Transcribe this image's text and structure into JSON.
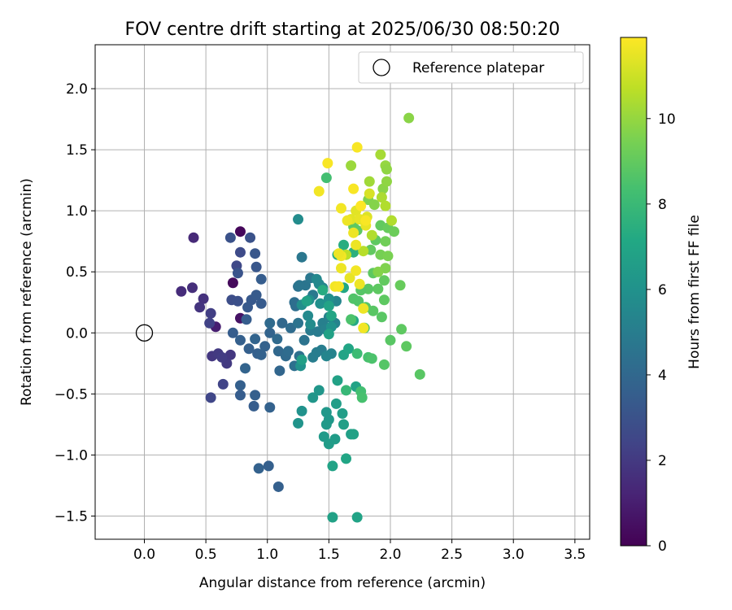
{
  "chart_data": {
    "type": "scatter",
    "title": "FOV centre drift starting at 2025/06/30 08:50:20",
    "xlabel": "Angular distance from reference (arcmin)",
    "ylabel": "Rotation from reference (arcmin)",
    "xlim": [
      -0.4,
      3.62
    ],
    "ylim": [
      -1.69,
      2.36
    ],
    "x_ticks": [
      "0.0",
      "0.5",
      "1.0",
      "1.5",
      "2.0",
      "2.5",
      "3.0",
      "3.5"
    ],
    "y_ticks": [
      "-1.5",
      "-1.0",
      "-0.5",
      "0.0",
      "0.5",
      "1.0",
      "1.5",
      "2.0"
    ],
    "grid": true,
    "legend": {
      "placement": "top-right",
      "entries": [
        "Reference platepar"
      ]
    },
    "reference_point": {
      "x": 0.0,
      "y": 0.0,
      "label": "Reference platepar"
    },
    "colorbar": {
      "label": "Hours from first FF file",
      "min": 0,
      "max": 11.9,
      "ticks": [
        "0",
        "2",
        "4",
        "6",
        "8",
        "10"
      ],
      "colormap": "viridis"
    },
    "series": [
      {
        "points": [
          [
            0.78,
            0.83,
            0.2
          ],
          [
            0.72,
            0.41,
            0.3
          ],
          [
            0.78,
            0.12,
            0.6
          ],
          [
            0.58,
            0.05,
            1.0
          ],
          [
            0.4,
            0.78,
            1.4
          ],
          [
            0.3,
            0.34,
            1.5
          ],
          [
            0.39,
            0.37,
            1.6
          ],
          [
            0.48,
            0.28,
            1.7
          ],
          [
            0.45,
            0.21,
            1.8
          ],
          [
            0.55,
            -0.19,
            1.9
          ],
          [
            0.7,
            -0.18,
            1.9
          ],
          [
            0.67,
            -0.25,
            2.0
          ],
          [
            0.6,
            -0.17,
            2.0
          ],
          [
            0.63,
            -0.2,
            2.1
          ],
          [
            0.54,
            0.16,
            2.2
          ],
          [
            0.53,
            0.08,
            2.3
          ],
          [
            0.64,
            -0.42,
            2.4
          ],
          [
            0.54,
            -0.53,
            2.5
          ],
          [
            0.75,
            0.55,
            2.6
          ],
          [
            0.78,
            0.66,
            2.7
          ],
          [
            0.71,
            0.27,
            2.8
          ],
          [
            0.76,
            0.26,
            2.9
          ],
          [
            0.7,
            0.78,
            3.0
          ],
          [
            0.86,
            0.78,
            3.0
          ],
          [
            0.76,
            0.49,
            3.1
          ],
          [
            0.9,
            0.65,
            3.2
          ],
          [
            0.91,
            0.54,
            3.2
          ],
          [
            0.87,
            0.27,
            3.3
          ],
          [
            0.84,
            0.21,
            3.3
          ],
          [
            0.95,
            0.24,
            3.4
          ],
          [
            0.91,
            0.31,
            3.4
          ],
          [
            0.95,
            0.44,
            3.5
          ],
          [
            0.83,
            0.11,
            3.5
          ],
          [
            0.72,
            0.0,
            3.5
          ],
          [
            0.78,
            -0.06,
            3.6
          ],
          [
            0.85,
            -0.13,
            3.6
          ],
          [
            0.92,
            -0.17,
            3.6
          ],
          [
            0.98,
            -0.11,
            3.7
          ],
          [
            0.95,
            -0.18,
            3.7
          ],
          [
            1.02,
            0.0,
            3.8
          ],
          [
            0.9,
            -0.05,
            3.8
          ],
          [
            0.82,
            -0.29,
            3.8
          ],
          [
            0.78,
            -0.43,
            3.6
          ],
          [
            0.78,
            -0.51,
            3.5
          ],
          [
            0.89,
            -0.6,
            3.5
          ],
          [
            0.9,
            -0.51,
            3.6
          ],
          [
            1.02,
            -0.61,
            3.7
          ],
          [
            1.01,
            -1.09,
            3.6
          ],
          [
            0.93,
            -1.11,
            3.7
          ],
          [
            1.09,
            -1.26,
            3.6
          ],
          [
            1.1,
            -0.31,
            3.9
          ],
          [
            1.09,
            -0.15,
            4.0
          ],
          [
            1.12,
            0.08,
            4.0
          ],
          [
            1.15,
            -0.19,
            4.1
          ],
          [
            1.08,
            -0.05,
            4.1
          ],
          [
            1.02,
            0.08,
            4.1
          ],
          [
            1.17,
            -0.15,
            4.2
          ],
          [
            1.19,
            0.04,
            4.2
          ],
          [
            1.22,
            0.25,
            4.3
          ],
          [
            1.23,
            0.22,
            4.3
          ],
          [
            1.22,
            -0.27,
            4.4
          ],
          [
            1.26,
            -0.19,
            4.4
          ],
          [
            1.25,
            0.38,
            4.4
          ],
          [
            1.25,
            0.08,
            4.5
          ],
          [
            1.3,
            -0.06,
            4.5
          ],
          [
            1.31,
            0.39,
            4.6
          ],
          [
            1.26,
            0.39,
            4.6
          ],
          [
            1.28,
            0.62,
            4.7
          ],
          [
            1.35,
            0.45,
            4.7
          ],
          [
            1.37,
            0.31,
            4.8
          ],
          [
            1.35,
            0.02,
            4.9
          ],
          [
            1.41,
            0.01,
            4.9
          ],
          [
            1.44,
            -0.14,
            5.0
          ],
          [
            1.4,
            -0.16,
            5.0
          ],
          [
            1.37,
            -0.2,
            5.0
          ],
          [
            1.45,
            0.08,
            5.1
          ],
          [
            1.47,
            0.03,
            5.2
          ],
          [
            1.5,
            0.13,
            5.2
          ],
          [
            1.52,
            -0.17,
            5.3
          ],
          [
            1.55,
            0.08,
            5.3
          ],
          [
            1.48,
            -0.19,
            5.4
          ],
          [
            1.56,
            0.26,
            5.4
          ],
          [
            1.45,
            0.37,
            5.4
          ],
          [
            1.42,
            0.4,
            5.5
          ],
          [
            1.4,
            0.44,
            5.5
          ],
          [
            1.33,
            0.14,
            5.6
          ],
          [
            1.35,
            0.07,
            5.7
          ],
          [
            1.25,
            0.93,
            5.7
          ],
          [
            1.28,
            0.23,
            5.8
          ],
          [
            1.34,
            0.27,
            5.8
          ],
          [
            1.43,
            0.24,
            5.9
          ],
          [
            1.5,
            0.28,
            5.9
          ],
          [
            1.52,
            0.05,
            6.0
          ],
          [
            1.27,
            -0.27,
            6.0
          ],
          [
            1.28,
            -0.64,
            6.0
          ],
          [
            1.25,
            -0.74,
            6.1
          ],
          [
            1.37,
            -0.53,
            6.2
          ],
          [
            1.42,
            -0.47,
            6.2
          ],
          [
            1.48,
            -0.65,
            6.3
          ],
          [
            1.5,
            -0.71,
            6.3
          ],
          [
            1.48,
            -0.75,
            6.4
          ],
          [
            1.46,
            -0.85,
            6.4
          ],
          [
            1.5,
            -0.91,
            6.5
          ],
          [
            1.55,
            -0.87,
            6.5
          ],
          [
            1.56,
            -0.58,
            6.6
          ],
          [
            1.61,
            -0.66,
            6.6
          ],
          [
            1.62,
            -0.75,
            6.7
          ],
          [
            1.68,
            -0.83,
            6.7
          ],
          [
            1.7,
            -0.83,
            6.8
          ],
          [
            1.57,
            -0.39,
            6.8
          ],
          [
            1.72,
            -0.44,
            6.9
          ],
          [
            1.53,
            -1.09,
            6.9
          ],
          [
            1.64,
            -1.03,
            7.0
          ],
          [
            1.53,
            -1.51,
            6.8
          ],
          [
            1.73,
            -1.51,
            6.9
          ],
          [
            1.28,
            -0.22,
            6.7
          ],
          [
            1.5,
            -0.01,
            6.8
          ],
          [
            1.62,
            -0.18,
            6.9
          ],
          [
            1.66,
            -0.13,
            7.0
          ],
          [
            1.52,
            0.14,
            7.0
          ],
          [
            1.32,
            0.26,
            6.8
          ],
          [
            1.5,
            0.22,
            6.9
          ],
          [
            1.62,
            0.37,
            7.1
          ],
          [
            1.7,
            0.1,
            7.2
          ],
          [
            1.62,
            0.72,
            7.4
          ],
          [
            1.7,
            0.66,
            7.5
          ],
          [
            1.57,
            0.64,
            7.4
          ],
          [
            1.45,
            0.35,
            7.3
          ],
          [
            1.48,
            1.27,
            8.3
          ],
          [
            1.64,
            -0.47,
            7.9
          ],
          [
            1.73,
            -0.17,
            8.1
          ],
          [
            1.76,
            -0.48,
            8.3
          ],
          [
            1.77,
            -0.53,
            8.4
          ],
          [
            1.82,
            -0.2,
            8.4
          ],
          [
            1.85,
            -0.21,
            8.5
          ],
          [
            1.95,
            -0.26,
            8.7
          ],
          [
            2.0,
            -0.06,
            8.8
          ],
          [
            2.09,
            0.03,
            8.9
          ],
          [
            2.13,
            -0.11,
            8.9
          ],
          [
            2.24,
            -0.34,
            8.8
          ],
          [
            1.79,
            0.04,
            8.6
          ],
          [
            1.68,
            0.11,
            8.5
          ],
          [
            1.74,
            0.26,
            8.6
          ],
          [
            1.8,
            0.21,
            8.7
          ],
          [
            1.86,
            0.18,
            8.8
          ],
          [
            1.93,
            0.13,
            8.8
          ],
          [
            1.95,
            0.27,
            8.9
          ],
          [
            1.9,
            0.36,
            8.9
          ],
          [
            1.82,
            0.36,
            8.8
          ],
          [
            1.76,
            0.35,
            8.7
          ],
          [
            1.7,
            0.28,
            8.6
          ],
          [
            1.86,
            0.49,
            8.9
          ],
          [
            1.95,
            0.43,
            9.0
          ],
          [
            2.08,
            0.39,
            9.1
          ],
          [
            1.84,
            0.68,
            9.0
          ],
          [
            1.88,
            0.76,
            8.9
          ],
          [
            1.73,
            0.84,
            8.9
          ],
          [
            1.7,
            0.87,
            8.9
          ],
          [
            1.92,
            0.88,
            9.0
          ],
          [
            1.98,
            0.86,
            9.1
          ],
          [
            2.03,
            0.83,
            9.2
          ],
          [
            1.96,
            0.75,
            9.3
          ],
          [
            1.92,
            0.64,
            9.4
          ],
          [
            1.98,
            0.63,
            9.5
          ],
          [
            1.96,
            0.53,
            9.6
          ],
          [
            1.9,
            0.5,
            9.7
          ],
          [
            1.82,
            1.09,
            9.6
          ],
          [
            1.87,
            1.05,
            9.7
          ],
          [
            1.94,
            1.18,
            9.8
          ],
          [
            1.97,
            1.24,
            9.9
          ],
          [
            1.96,
            1.37,
            10.0
          ],
          [
            1.92,
            1.46,
            10.3
          ],
          [
            1.68,
            1.37,
            10.1
          ],
          [
            1.83,
            1.24,
            10.2
          ],
          [
            1.93,
            1.11,
            10.4
          ],
          [
            2.01,
            0.92,
            10.5
          ],
          [
            1.85,
            0.8,
            10.5
          ],
          [
            1.78,
            0.67,
            10.6
          ],
          [
            1.64,
            0.64,
            10.7
          ],
          [
            2.15,
            1.76,
            9.8
          ],
          [
            1.97,
            1.34,
            9.9
          ],
          [
            1.96,
            1.04,
            10.5
          ],
          [
            1.83,
            1.14,
            11.2
          ],
          [
            1.81,
            0.95,
            11.3
          ],
          [
            1.72,
            1.0,
            11.4
          ],
          [
            1.68,
            0.93,
            11.4
          ],
          [
            1.75,
            0.93,
            11.5
          ],
          [
            1.8,
            0.88,
            11.5
          ],
          [
            1.65,
            0.92,
            11.6
          ],
          [
            1.7,
            0.82,
            11.6
          ],
          [
            1.72,
            0.72,
            11.6
          ],
          [
            1.6,
            0.63,
            11.7
          ],
          [
            1.58,
            0.65,
            11.6
          ],
          [
            1.6,
            0.53,
            11.6
          ],
          [
            1.67,
            0.45,
            11.5
          ],
          [
            1.75,
            0.4,
            11.6
          ],
          [
            1.72,
            0.51,
            11.7
          ],
          [
            1.55,
            0.38,
            11.7
          ],
          [
            1.58,
            0.38,
            11.8
          ],
          [
            1.6,
            1.02,
            11.7
          ],
          [
            1.73,
            1.52,
            11.8
          ],
          [
            1.49,
            1.39,
            11.8
          ],
          [
            1.42,
            1.16,
            11.7
          ],
          [
            1.7,
            1.18,
            11.8
          ],
          [
            1.76,
            1.04,
            11.9
          ],
          [
            1.8,
            0.92,
            11.8
          ],
          [
            1.78,
            0.2,
            11.6
          ],
          [
            1.78,
            0.04,
            11.7
          ]
        ]
      }
    ]
  }
}
